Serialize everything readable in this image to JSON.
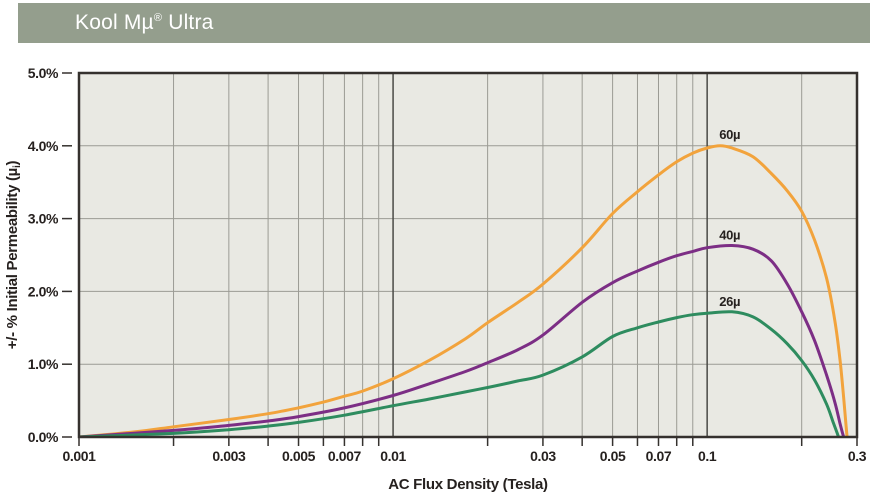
{
  "header": {
    "title_pre": "Kool Mµ",
    "title_reg_mark": "®",
    "title_post": " Ultra",
    "bg_color": "#949E8D"
  },
  "chart_data": {
    "type": "line",
    "title": "Kool Mµ Ultra",
    "xlabel": "AC Flux Density (Tesla)",
    "ylabel": "+/- % Initial Permeability (µi)",
    "ylabel_parts": {
      "pre": "+/- % Initial Permeability (µ",
      "sub": "i",
      "post": ")"
    },
    "x_scale": "log",
    "xlim": [
      0.001,
      0.3
    ],
    "ylim": [
      0,
      5
    ],
    "grid": {
      "on": true,
      "x_major": [
        0.01,
        0.1
      ],
      "y_lines": [
        1,
        2,
        3,
        4
      ],
      "log_minor_x": true
    },
    "plot_bg": "#E9E9E3",
    "minor_grid_color": "#9B9B94",
    "major_grid_color": "#4A4A46",
    "border_color": "#35312E",
    "x_ticks": [
      {
        "value": 0.001,
        "label": "0.001"
      },
      {
        "value": 0.003,
        "label": "0.003"
      },
      {
        "value": 0.005,
        "label": "0.005"
      },
      {
        "value": 0.007,
        "label": "0.007"
      },
      {
        "value": 0.01,
        "label": "0.01"
      },
      {
        "value": 0.03,
        "label": "0.03"
      },
      {
        "value": 0.05,
        "label": "0.05"
      },
      {
        "value": 0.07,
        "label": "0.07"
      },
      {
        "value": 0.1,
        "label": "0.1"
      },
      {
        "value": 0.3,
        "label": "0.3"
      }
    ],
    "y_ticks": [
      {
        "value": 0,
        "label": "0.0%"
      },
      {
        "value": 1,
        "label": "1.0%"
      },
      {
        "value": 2,
        "label": "2.0%"
      },
      {
        "value": 3,
        "label": "3.0%"
      },
      {
        "value": 4,
        "label": "4.0%"
      },
      {
        "value": 5,
        "label": "5.0%"
      }
    ],
    "series": [
      {
        "name": "60µ",
        "label": "60µ",
        "color": "#F2A33C",
        "label_x": 0.118,
        "label_y": 4.09,
        "points": [
          [
            0.001,
            0.0
          ],
          [
            0.0015,
            0.07
          ],
          [
            0.002,
            0.14
          ],
          [
            0.003,
            0.24
          ],
          [
            0.004,
            0.32
          ],
          [
            0.005,
            0.4
          ],
          [
            0.006,
            0.48
          ],
          [
            0.007,
            0.56
          ],
          [
            0.008,
            0.63
          ],
          [
            0.01,
            0.8
          ],
          [
            0.013,
            1.05
          ],
          [
            0.017,
            1.35
          ],
          [
            0.02,
            1.57
          ],
          [
            0.025,
            1.85
          ],
          [
            0.03,
            2.1
          ],
          [
            0.04,
            2.6
          ],
          [
            0.05,
            3.07
          ],
          [
            0.06,
            3.37
          ],
          [
            0.07,
            3.6
          ],
          [
            0.08,
            3.78
          ],
          [
            0.09,
            3.9
          ],
          [
            0.1,
            3.97
          ],
          [
            0.11,
            4.0
          ],
          [
            0.12,
            3.97
          ],
          [
            0.14,
            3.85
          ],
          [
            0.16,
            3.62
          ],
          [
            0.18,
            3.38
          ],
          [
            0.2,
            3.1
          ],
          [
            0.22,
            2.7
          ],
          [
            0.24,
            2.18
          ],
          [
            0.255,
            1.6
          ],
          [
            0.265,
            1.05
          ],
          [
            0.272,
            0.55
          ],
          [
            0.277,
            0.15
          ],
          [
            0.279,
            0.0
          ]
        ]
      },
      {
        "name": "40µ",
        "label": "40µ",
        "color": "#7C2E85",
        "label_x": 0.118,
        "label_y": 2.71,
        "points": [
          [
            0.001,
            0.0
          ],
          [
            0.002,
            0.09
          ],
          [
            0.003,
            0.16
          ],
          [
            0.004,
            0.22
          ],
          [
            0.005,
            0.28
          ],
          [
            0.007,
            0.4
          ],
          [
            0.01,
            0.57
          ],
          [
            0.013,
            0.73
          ],
          [
            0.017,
            0.9
          ],
          [
            0.02,
            1.02
          ],
          [
            0.025,
            1.2
          ],
          [
            0.03,
            1.4
          ],
          [
            0.04,
            1.85
          ],
          [
            0.05,
            2.12
          ],
          [
            0.06,
            2.28
          ],
          [
            0.07,
            2.4
          ],
          [
            0.08,
            2.49
          ],
          [
            0.09,
            2.55
          ],
          [
            0.1,
            2.6
          ],
          [
            0.12,
            2.63
          ],
          [
            0.14,
            2.58
          ],
          [
            0.16,
            2.42
          ],
          [
            0.18,
            2.1
          ],
          [
            0.2,
            1.72
          ],
          [
            0.22,
            1.32
          ],
          [
            0.24,
            0.85
          ],
          [
            0.255,
            0.48
          ],
          [
            0.265,
            0.18
          ],
          [
            0.27,
            0.05
          ],
          [
            0.272,
            0.0
          ]
        ]
      },
      {
        "name": "26µ",
        "label": "26µ",
        "color": "#2E8C5F",
        "label_x": 0.118,
        "label_y": 1.8,
        "points": [
          [
            0.001,
            0.0
          ],
          [
            0.002,
            0.05
          ],
          [
            0.003,
            0.1
          ],
          [
            0.004,
            0.15
          ],
          [
            0.005,
            0.2
          ],
          [
            0.007,
            0.3
          ],
          [
            0.01,
            0.43
          ],
          [
            0.013,
            0.52
          ],
          [
            0.017,
            0.62
          ],
          [
            0.02,
            0.68
          ],
          [
            0.025,
            0.77
          ],
          [
            0.03,
            0.85
          ],
          [
            0.04,
            1.1
          ],
          [
            0.05,
            1.38
          ],
          [
            0.06,
            1.5
          ],
          [
            0.07,
            1.58
          ],
          [
            0.08,
            1.64
          ],
          [
            0.09,
            1.68
          ],
          [
            0.1,
            1.7
          ],
          [
            0.12,
            1.72
          ],
          [
            0.14,
            1.65
          ],
          [
            0.16,
            1.48
          ],
          [
            0.18,
            1.28
          ],
          [
            0.2,
            1.05
          ],
          [
            0.22,
            0.78
          ],
          [
            0.24,
            0.45
          ],
          [
            0.252,
            0.2
          ],
          [
            0.259,
            0.06
          ],
          [
            0.262,
            0.0
          ]
        ]
      }
    ]
  }
}
